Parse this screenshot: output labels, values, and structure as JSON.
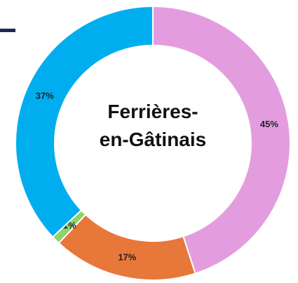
{
  "chart_data": {
    "type": "donut",
    "title": "Ferrières-en-Gâtinais",
    "categories": [
      null,
      null,
      null,
      null
    ],
    "values": [
      45,
      17,
      1,
      37
    ],
    "value_labels": [
      "45%",
      "17%",
      "1%",
      "37%"
    ],
    "colors": [
      "#e39ddf",
      "#e8773a",
      "#8fd16a",
      "#00aeef"
    ]
  }
}
